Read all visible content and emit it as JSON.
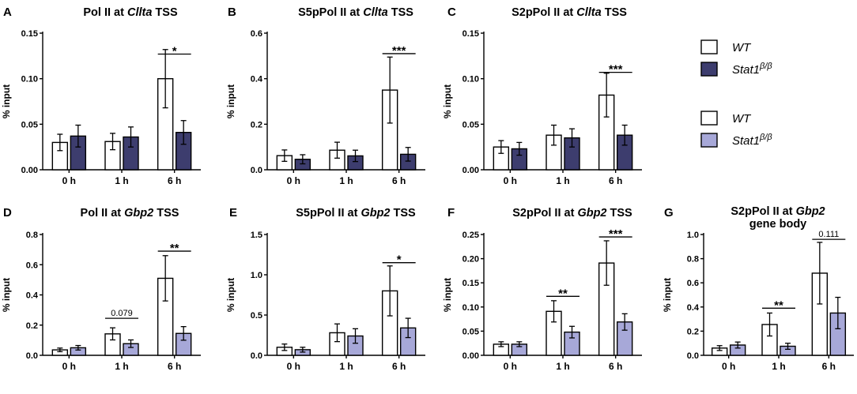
{
  "colors": {
    "wt": "#ffffff",
    "stat1_dark": "#3d3d6e",
    "stat1_light": "#a7a8d8",
    "edge": "#000000"
  },
  "legend": [
    {
      "label": "WT",
      "color": "#ffffff"
    },
    {
      "label": "Stat1",
      "sup": "β/β",
      "color": "#3d3d6e"
    },
    {
      "label": "WT",
      "color": "#ffffff"
    },
    {
      "label": "Stat1",
      "sup": "β/β",
      "color": "#a7a8d8"
    }
  ],
  "chart_data": [
    {
      "panel": "A",
      "type": "bar",
      "title": [
        {
          "t": "Pol II at "
        },
        {
          "t": "Cllta",
          "i": true
        },
        {
          "t": " TSS"
        }
      ],
      "title2": "",
      "ylabel": "% input",
      "ylim": [
        0,
        0.15
      ],
      "yticks": [
        "0.00",
        "0.05",
        "0.10",
        "0.15"
      ],
      "categories": [
        "0 h",
        "1 h",
        "6 h"
      ],
      "series": [
        {
          "name": "WT",
          "color": "#ffffff",
          "values": [
            0.03,
            0.031,
            0.1
          ],
          "errors": [
            0.009,
            0.009,
            0.032
          ]
        },
        {
          "name": "Stat1β/β",
          "color": "#3d3d6e",
          "values": [
            0.037,
            0.036,
            0.041
          ],
          "errors": [
            0.012,
            0.011,
            0.013
          ]
        }
      ],
      "annotations": [
        {
          "category": 2,
          "text": "*",
          "y": 0.127
        }
      ]
    },
    {
      "panel": "B",
      "type": "bar",
      "title": [
        {
          "t": "S5pPol II at "
        },
        {
          "t": "Cllta",
          "i": true
        },
        {
          "t": " TSS"
        }
      ],
      "title2": "",
      "ylabel": "% input",
      "ylim": [
        0,
        0.6
      ],
      "yticks": [
        "0.0",
        "0.2",
        "0.4",
        "0.6"
      ],
      "categories": [
        "0 h",
        "1 h",
        "6 h"
      ],
      "series": [
        {
          "name": "WT",
          "color": "#ffffff",
          "values": [
            0.062,
            0.086,
            0.35
          ],
          "errors": [
            0.025,
            0.035,
            0.145
          ]
        },
        {
          "name": "Stat1β/β",
          "color": "#3d3d6e",
          "values": [
            0.046,
            0.061,
            0.068
          ],
          "errors": [
            0.02,
            0.025,
            0.03
          ]
        }
      ],
      "annotations": [
        {
          "category": 2,
          "text": "***",
          "y": 0.51
        }
      ]
    },
    {
      "panel": "C",
      "type": "bar",
      "title": [
        {
          "t": "S2pPol II at "
        },
        {
          "t": "Cllta",
          "i": true
        },
        {
          "t": " TSS"
        }
      ],
      "title2": "",
      "ylabel": "% input",
      "ylim": [
        0,
        0.15
      ],
      "yticks": [
        "0.00",
        "0.05",
        "0.10",
        "0.15"
      ],
      "categories": [
        "0 h",
        "1 h",
        "6 h"
      ],
      "series": [
        {
          "name": "WT",
          "color": "#ffffff",
          "values": [
            0.025,
            0.038,
            0.082
          ],
          "errors": [
            0.007,
            0.011,
            0.024
          ]
        },
        {
          "name": "Stat1β/β",
          "color": "#3d3d6e",
          "values": [
            0.023,
            0.035,
            0.038
          ],
          "errors": [
            0.007,
            0.01,
            0.011
          ]
        }
      ],
      "annotations": [
        {
          "category": 2,
          "text": "***",
          "y": 0.107
        }
      ]
    },
    {
      "panel": "D",
      "type": "bar",
      "title": [
        {
          "t": "Pol II at "
        },
        {
          "t": "Gbp2",
          "i": true
        },
        {
          "t": " TSS"
        }
      ],
      "title2": "",
      "ylabel": "% input",
      "ylim": [
        0,
        0.8
      ],
      "yticks": [
        "0.0",
        "0.2",
        "0.4",
        "0.6",
        "0.8"
      ],
      "categories": [
        "0 h",
        "1 h",
        "6 h"
      ],
      "series": [
        {
          "name": "WT",
          "color": "#ffffff",
          "values": [
            0.036,
            0.142,
            0.51
          ],
          "errors": [
            0.012,
            0.04,
            0.15
          ]
        },
        {
          "name": "Stat1β/β",
          "color": "#a7a8d8",
          "values": [
            0.05,
            0.077,
            0.145
          ],
          "errors": [
            0.015,
            0.025,
            0.045
          ]
        }
      ],
      "annotations": [
        {
          "category": 1,
          "text": "0.079",
          "y": 0.245
        },
        {
          "category": 2,
          "text": "**",
          "y": 0.69
        }
      ]
    },
    {
      "panel": "E",
      "type": "bar",
      "title": [
        {
          "t": "S5pPol II at "
        },
        {
          "t": "Gbp2",
          "i": true
        },
        {
          "t": " TSS"
        }
      ],
      "title2": "",
      "ylabel": "% input",
      "ylim": [
        0,
        1.5
      ],
      "yticks": [
        "0.0",
        "0.5",
        "1.0",
        "1.5"
      ],
      "categories": [
        "0 h",
        "1 h",
        "6 h"
      ],
      "series": [
        {
          "name": "WT",
          "color": "#ffffff",
          "values": [
            0.1,
            0.28,
            0.8
          ],
          "errors": [
            0.04,
            0.11,
            0.31
          ]
        },
        {
          "name": "Stat1β/β",
          "color": "#a7a8d8",
          "values": [
            0.07,
            0.24,
            0.34
          ],
          "errors": [
            0.03,
            0.09,
            0.12
          ]
        }
      ],
      "annotations": [
        {
          "category": 2,
          "text": "*",
          "y": 1.15
        }
      ]
    },
    {
      "panel": "F",
      "type": "bar",
      "title": [
        {
          "t": "S2pPol II at "
        },
        {
          "t": "Gbp2",
          "i": true
        },
        {
          "t": " TSS"
        }
      ],
      "title2": "",
      "ylabel": "% input",
      "ylim": [
        0,
        0.25
      ],
      "yticks": [
        "0.00",
        "0.05",
        "0.10",
        "0.15",
        "0.20",
        "0.25"
      ],
      "categories": [
        "0 h",
        "1 h",
        "6 h"
      ],
      "series": [
        {
          "name": "WT",
          "color": "#ffffff",
          "values": [
            0.023,
            0.091,
            0.191
          ],
          "errors": [
            0.005,
            0.022,
            0.046
          ]
        },
        {
          "name": "Stat1β/β",
          "color": "#a7a8d8",
          "values": [
            0.023,
            0.048,
            0.069
          ],
          "errors": [
            0.005,
            0.012,
            0.017
          ]
        }
      ],
      "annotations": [
        {
          "category": 1,
          "text": "**",
          "y": 0.122
        },
        {
          "category": 2,
          "text": "***",
          "y": 0.245
        }
      ]
    },
    {
      "panel": "G",
      "type": "bar",
      "title": [
        {
          "t": "S2pPol II at "
        },
        {
          "t": "Gbp2",
          "i": true
        }
      ],
      "title2": "gene body",
      "ylabel": "% input",
      "ylim": [
        0,
        1.0
      ],
      "yticks": [
        "0.0",
        "0.2",
        "0.4",
        "0.6",
        "0.8",
        "1.0"
      ],
      "categories": [
        "0 h",
        "1 h",
        "6 h"
      ],
      "series": [
        {
          "name": "WT",
          "color": "#ffffff",
          "values": [
            0.06,
            0.255,
            0.68
          ],
          "errors": [
            0.02,
            0.095,
            0.255
          ]
        },
        {
          "name": "Stat1β/β",
          "color": "#a7a8d8",
          "values": [
            0.085,
            0.075,
            0.35
          ],
          "errors": [
            0.025,
            0.025,
            0.13
          ]
        }
      ],
      "annotations": [
        {
          "category": 1,
          "text": "**",
          "y": 0.39
        },
        {
          "category": 2,
          "text": "0.111",
          "y": 0.96
        }
      ]
    }
  ]
}
